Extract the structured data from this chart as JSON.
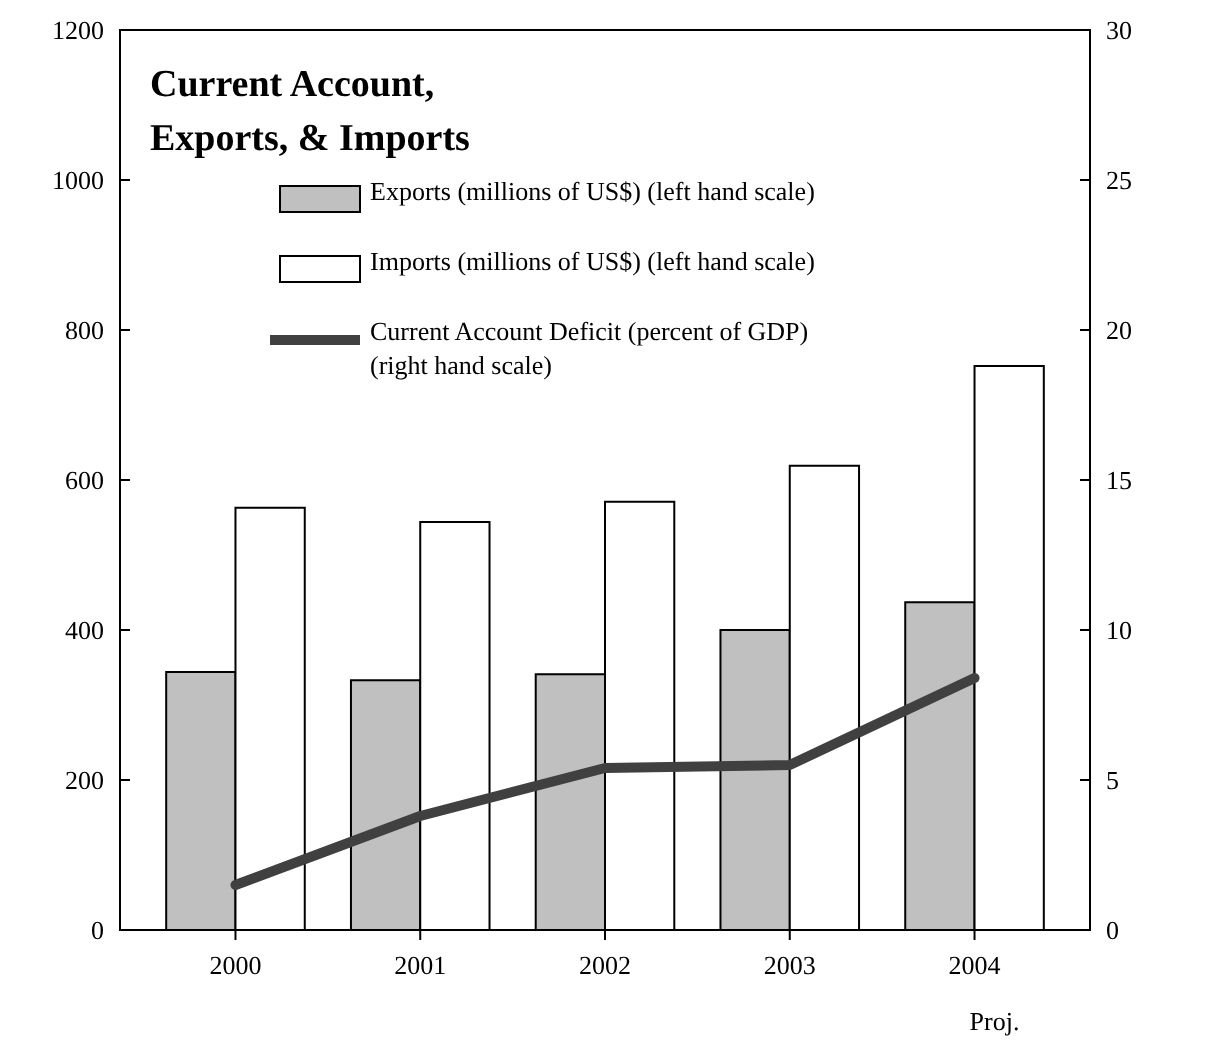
{
  "chart_data": {
    "type": "bar",
    "title": "Current Account, Exports, & Imports",
    "categories": [
      "2000",
      "2001",
      "2002",
      "2003",
      "2004"
    ],
    "series": [
      {
        "name": "Exports (millions of US$) (left hand scale)",
        "color": "#c0c0c0",
        "values": [
          344,
          333,
          341,
          400,
          437
        ]
      },
      {
        "name": "Imports (millions of US$) (left hand scale)",
        "color": "#ffffff",
        "values": [
          563,
          544,
          571,
          619,
          752
        ]
      },
      {
        "name": "Current Account Deficit (percent of GDP) (right hand scale)",
        "type": "line",
        "axis": "y2",
        "color": "#404040",
        "values": [
          1.5,
          3.8,
          5.4,
          5.5,
          8.4
        ]
      }
    ],
    "ylim": [
      0,
      1200
    ],
    "yticks": [
      0,
      200,
      400,
      600,
      800,
      1000,
      1200
    ],
    "y2lim": [
      0,
      30
    ],
    "y2ticks": [
      0,
      5,
      10,
      15,
      20,
      25,
      30
    ],
    "legend": "top",
    "grid": false,
    "marker": "none",
    "line_style": "solid",
    "annotations": [
      "Proj."
    ]
  }
}
